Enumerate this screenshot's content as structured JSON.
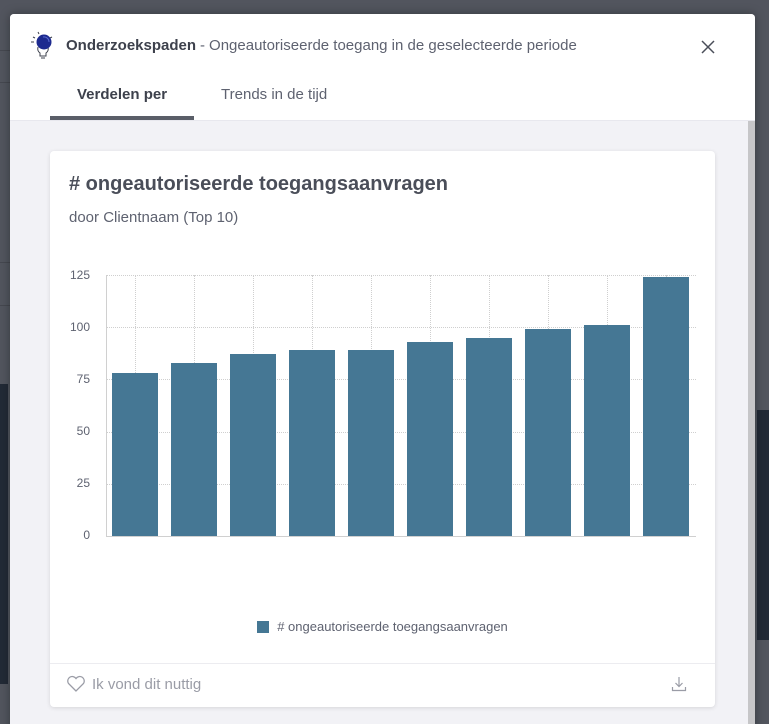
{
  "modal": {
    "title_strong": "Onderzoekspaden",
    "title_separator": "-",
    "title_rest": "Ongeautoriseerde toegang in de geselecteerde periode",
    "icons": {
      "header": "lightbulb-icon",
      "close": "close-icon"
    },
    "tabs": [
      {
        "label": "Verdelen per",
        "active": true
      },
      {
        "label": "Trends in de tijd",
        "active": false
      }
    ]
  },
  "card": {
    "title": "# ongeautoriseerde toegangsaanvragen",
    "subtitle": "door Clientnaam (Top 10)",
    "footer": {
      "like_label": "Ik vond dit nuttig",
      "like_icon": "heart-icon",
      "download_icon": "download-icon"
    }
  },
  "colors": {
    "bar": "#457794",
    "overlay": "#52555e",
    "text_dark": "#3d414c"
  },
  "chart_data": {
    "type": "bar",
    "title": "# ongeautoriseerde toegangsaanvragen",
    "subtitle": "door Clientnaam (Top 10)",
    "categories": [
      "",
      "",
      "",
      "",
      "",
      "",
      "",
      "",
      "",
      ""
    ],
    "values": [
      78,
      83,
      87,
      89,
      89,
      93,
      95,
      99,
      101,
      124
    ],
    "series": [
      {
        "name": "# ongeautoriseerde toegangsaanvragen",
        "values": [
          78,
          83,
          87,
          89,
          89,
          93,
          95,
          99,
          101,
          124
        ]
      }
    ],
    "yticks": [
      "125",
      "100",
      "75",
      "50",
      "25",
      "0"
    ],
    "xlabel": "",
    "ylabel": "",
    "ylim": [
      0,
      125
    ],
    "grid": true,
    "legend_position": "bottom",
    "legend": [
      "# ongeautoriseerde toegangsaanvragen"
    ]
  }
}
